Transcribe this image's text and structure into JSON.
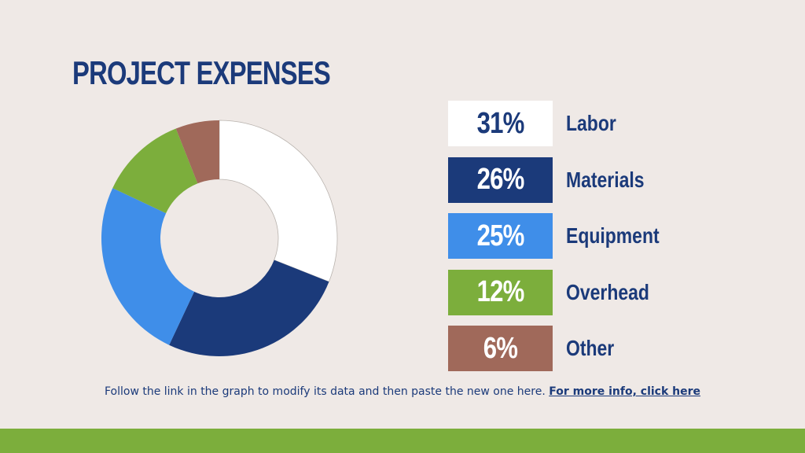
{
  "title": "PROJECT EXPENSES",
  "chart_data": {
    "type": "pie",
    "style": "donut",
    "categories": [
      "Labor",
      "Materials",
      "Equipment",
      "Overhead",
      "Other"
    ],
    "values": [
      31,
      26,
      25,
      12,
      6
    ],
    "labels": [
      "31%",
      "26%",
      "25%",
      "12%",
      "6%"
    ],
    "colors": [
      "#ffffff",
      "#1b3a7a",
      "#3f8ee9",
      "#7cae3c",
      "#a0695a"
    ],
    "text_colors": [
      "#1b3a7a",
      "#ffffff",
      "#ffffff",
      "#ffffff",
      "#ffffff"
    ]
  },
  "footer": {
    "note": "Follow the link in the graph to modify its data and then paste the new one here.",
    "link": "For more info, click here"
  },
  "colors": {
    "background": "#efe9e6",
    "accent_bar": "#7cae3c",
    "title": "#1b3a7a"
  }
}
